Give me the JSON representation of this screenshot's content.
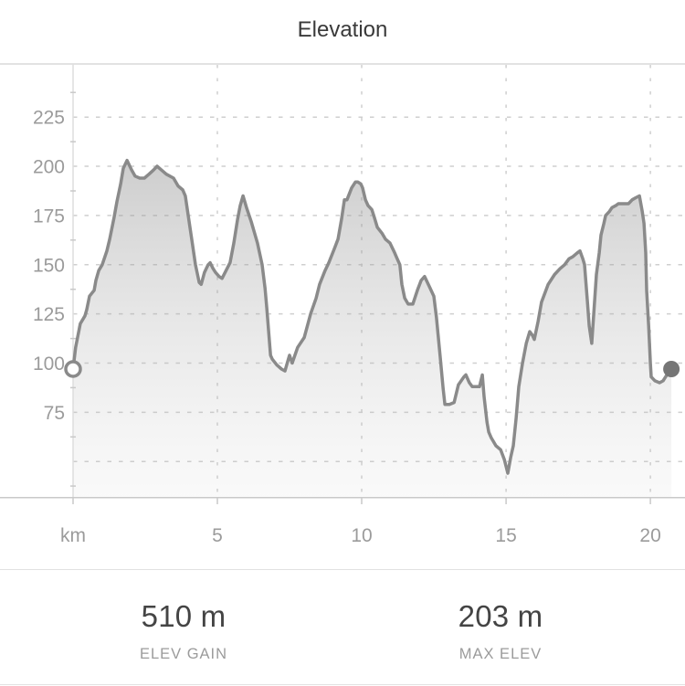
{
  "header": {
    "title": "Elevation"
  },
  "chart_data": {
    "type": "area",
    "title": "Elevation",
    "x_unit_label": "km",
    "x_tick_values": [
      5,
      10,
      15,
      20
    ],
    "y_tick_values": [
      225,
      200,
      175,
      150,
      125,
      100,
      75
    ],
    "y_gridline_values": [
      225,
      200,
      175,
      150,
      125,
      100,
      75,
      50
    ],
    "xlim": [
      0,
      21.2
    ],
    "ylim": [
      32,
      252
    ],
    "grid": "dashed-light-gray",
    "legend": "none",
    "start_point": {
      "km": 0,
      "elevation_m": 97,
      "marker": "open-circle"
    },
    "end_point": {
      "km": 20.73,
      "elevation_m": 97,
      "marker": "filled-circle"
    },
    "profile_km_elevation_m": [
      [
        0,
        97
      ],
      [
        0.09,
        108
      ],
      [
        0.25,
        120
      ],
      [
        0.41,
        124
      ],
      [
        0.47,
        127
      ],
      [
        0.57,
        134
      ],
      [
        0.73,
        137
      ],
      [
        0.79,
        142
      ],
      [
        0.89,
        147
      ],
      [
        1.01,
        150
      ],
      [
        1.17,
        157
      ],
      [
        1.27,
        163
      ],
      [
        1.42,
        174
      ],
      [
        1.52,
        182
      ],
      [
        1.65,
        191
      ],
      [
        1.74,
        199
      ],
      [
        1.87,
        203
      ],
      [
        2.03,
        198
      ],
      [
        2.15,
        195
      ],
      [
        2.31,
        194
      ],
      [
        2.47,
        194
      ],
      [
        2.63,
        196
      ],
      [
        2.78,
        198
      ],
      [
        2.91,
        200
      ],
      [
        3.07,
        198
      ],
      [
        3.23,
        196
      ],
      [
        3.48,
        194
      ],
      [
        3.64,
        190
      ],
      [
        3.8,
        188
      ],
      [
        3.89,
        185
      ],
      [
        4.11,
        163
      ],
      [
        4.24,
        150
      ],
      [
        4.37,
        141
      ],
      [
        4.44,
        140
      ],
      [
        4.55,
        146
      ],
      [
        4.68,
        150
      ],
      [
        4.75,
        151
      ],
      [
        4.85,
        148
      ],
      [
        4.94,
        146
      ],
      [
        5.06,
        144
      ],
      [
        5.16,
        143
      ],
      [
        5.3,
        147
      ],
      [
        5.44,
        151
      ],
      [
        5.57,
        161
      ],
      [
        5.7,
        173
      ],
      [
        5.79,
        180
      ],
      [
        5.89,
        185
      ],
      [
        6.01,
        179
      ],
      [
        6.17,
        172
      ],
      [
        6.39,
        161
      ],
      [
        6.55,
        150
      ],
      [
        6.65,
        138
      ],
      [
        6.71,
        128
      ],
      [
        6.84,
        104
      ],
      [
        6.9,
        102
      ],
      [
        7.06,
        99
      ],
      [
        7.22,
        97
      ],
      [
        7.34,
        96
      ],
      [
        7.44,
        101
      ],
      [
        7.5,
        104
      ],
      [
        7.59,
        100
      ],
      [
        7.78,
        108
      ],
      [
        8.01,
        113
      ],
      [
        8.23,
        125
      ],
      [
        8.42,
        133
      ],
      [
        8.54,
        140
      ],
      [
        8.73,
        147
      ],
      [
        8.86,
        151
      ],
      [
        9.05,
        158
      ],
      [
        9.18,
        163
      ],
      [
        9.3,
        173
      ],
      [
        9.4,
        183
      ],
      [
        9.49,
        183
      ],
      [
        9.65,
        189
      ],
      [
        9.78,
        192
      ],
      [
        9.87,
        192
      ],
      [
        9.97,
        191
      ],
      [
        10.03,
        189
      ],
      [
        10.13,
        183
      ],
      [
        10.22,
        180
      ],
      [
        10.35,
        178
      ],
      [
        10.44,
        174
      ],
      [
        10.54,
        169
      ],
      [
        10.7,
        166
      ],
      [
        10.82,
        163
      ],
      [
        10.98,
        161
      ],
      [
        11.14,
        156
      ],
      [
        11.23,
        153
      ],
      [
        11.32,
        150
      ],
      [
        11.39,
        140
      ],
      [
        11.49,
        133
      ],
      [
        11.61,
        130
      ],
      [
        11.77,
        130
      ],
      [
        11.93,
        137
      ],
      [
        12.06,
        142
      ],
      [
        12.18,
        144
      ],
      [
        12.34,
        139
      ],
      [
        12.5,
        134
      ],
      [
        12.59,
        123
      ],
      [
        12.72,
        103
      ],
      [
        12.82,
        87
      ],
      [
        12.88,
        79
      ],
      [
        13.04,
        79
      ],
      [
        13.2,
        80
      ],
      [
        13.35,
        89
      ],
      [
        13.54,
        93
      ],
      [
        13.61,
        94
      ],
      [
        13.73,
        90
      ],
      [
        13.83,
        88
      ],
      [
        13.99,
        88
      ],
      [
        14.08,
        88
      ],
      [
        14.18,
        94
      ],
      [
        14.24,
        83
      ],
      [
        14.34,
        70
      ],
      [
        14.4,
        65
      ],
      [
        14.49,
        62
      ],
      [
        14.65,
        58
      ],
      [
        14.81,
        56
      ],
      [
        14.94,
        51
      ],
      [
        15.06,
        44
      ],
      [
        15.16,
        52
      ],
      [
        15.25,
        58
      ],
      [
        15.35,
        72
      ],
      [
        15.44,
        88
      ],
      [
        15.57,
        100
      ],
      [
        15.7,
        110
      ],
      [
        15.82,
        116
      ],
      [
        15.92,
        114
      ],
      [
        15.98,
        112
      ],
      [
        16.11,
        121
      ],
      [
        16.23,
        131
      ],
      [
        16.46,
        140
      ],
      [
        16.68,
        145
      ],
      [
        16.87,
        148
      ],
      [
        17.03,
        150
      ],
      [
        17.18,
        153
      ],
      [
        17.31,
        154
      ],
      [
        17.47,
        156
      ],
      [
        17.56,
        157
      ],
      [
        17.66,
        153
      ],
      [
        17.72,
        150
      ],
      [
        17.82,
        131
      ],
      [
        17.88,
        119
      ],
      [
        17.97,
        110
      ],
      [
        18.13,
        145
      ],
      [
        18.23,
        156
      ],
      [
        18.29,
        165
      ],
      [
        18.39,
        171
      ],
      [
        18.45,
        175
      ],
      [
        18.58,
        177
      ],
      [
        18.67,
        179
      ],
      [
        18.8,
        180
      ],
      [
        18.89,
        181
      ],
      [
        19.08,
        181
      ],
      [
        19.24,
        181
      ],
      [
        19.37,
        183
      ],
      [
        19.49,
        184
      ],
      [
        19.62,
        185
      ],
      [
        19.72,
        177
      ],
      [
        19.78,
        171
      ],
      [
        19.84,
        156
      ],
      [
        19.87,
        137
      ],
      [
        19.94,
        119
      ],
      [
        20,
        100
      ],
      [
        20.03,
        93
      ],
      [
        20.16,
        91
      ],
      [
        20.32,
        90
      ],
      [
        20.44,
        91
      ],
      [
        20.57,
        94
      ],
      [
        20.73,
        97
      ]
    ]
  },
  "stats": {
    "items": [
      {
        "value": "510 m",
        "label": "ELEV GAIN"
      },
      {
        "value": "203 m",
        "label": "MAX ELEV"
      }
    ]
  },
  "colors": {
    "line": "#8a8a8a",
    "area_top": "#787878",
    "area_bottom": "#c8c8c8",
    "grid": "#cfcfcf",
    "minor_tick": "#c9c9c9",
    "axis": "#dedede",
    "top_border": "#d9d9d9",
    "baseline": "#c9c9c9",
    "tick_label": "#9b9b9b",
    "title_text": "#3a3a3a",
    "stat_value": "#444444",
    "stat_label": "#9b9b9b",
    "divider": "#e2e2e2",
    "end_marker": "#757575",
    "start_marker_fill": "#ffffff"
  }
}
